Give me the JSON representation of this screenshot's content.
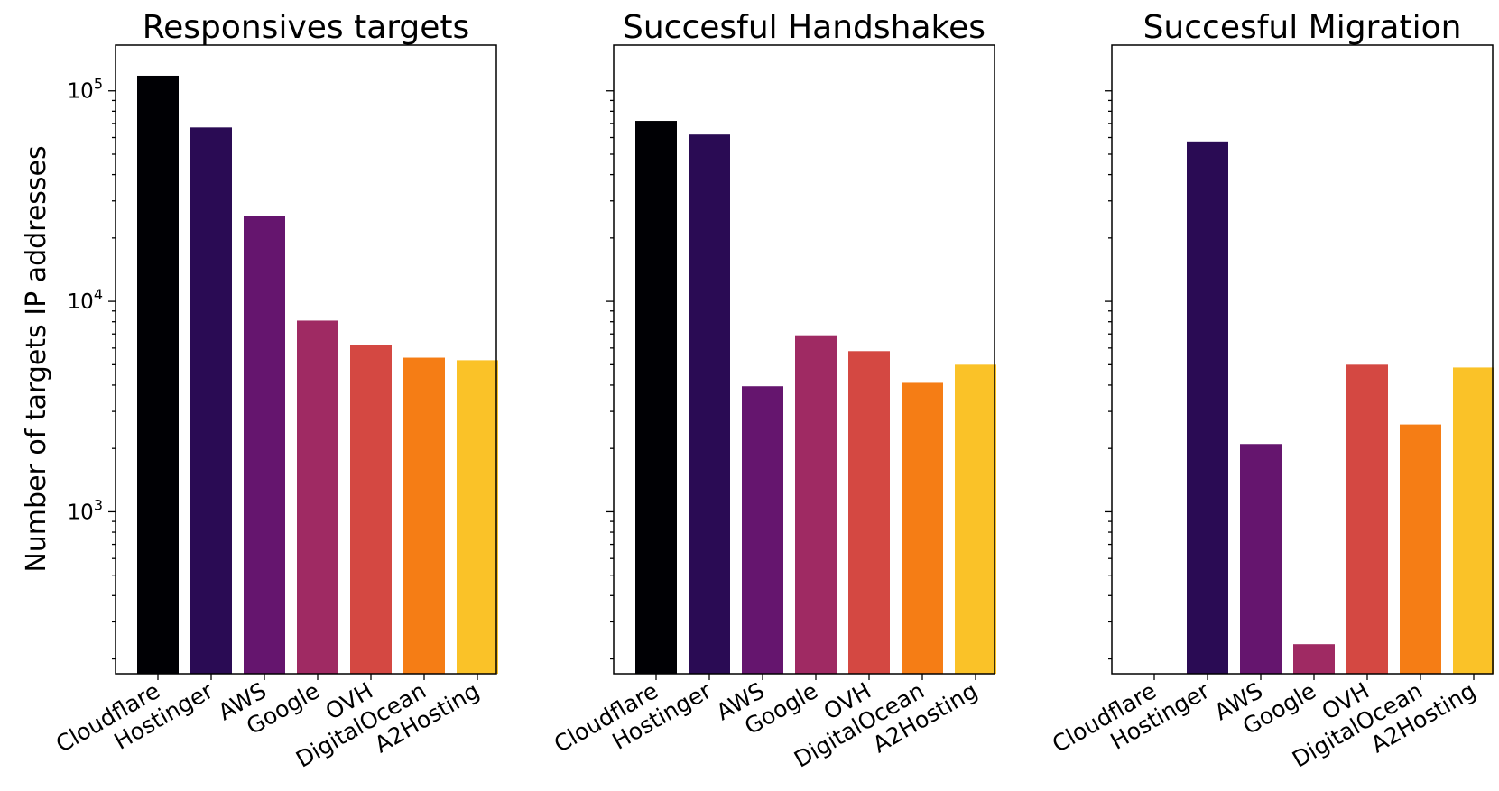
{
  "chart_data": {
    "type": "bar",
    "yscale": "log",
    "ylim": [
      170,
      165000
    ],
    "ylabel": "Number of targets IP addresses",
    "y_ticks": [
      {
        "value": 1000,
        "label": "10",
        "exp": "3"
      },
      {
        "value": 10000,
        "label": "10",
        "exp": "4"
      },
      {
        "value": 100000,
        "label": "10",
        "exp": "5"
      }
    ],
    "categories": [
      "Cloudflare",
      "Hostinger",
      "AWS",
      "Google",
      "OVH",
      "DigitalOcean",
      "A2Hosting"
    ],
    "colors": [
      "#000004",
      "#2a0b54",
      "#65156e",
      "#9f2a63",
      "#d44842",
      "#f57d15",
      "#fac228"
    ],
    "panels": [
      {
        "title": "Responsives targets",
        "values": [
          118000,
          67000,
          25500,
          8100,
          6200,
          5400,
          5250
        ]
      },
      {
        "title": "Succesful Handshakes",
        "values": [
          72000,
          62000,
          3950,
          6900,
          5800,
          4100,
          5000
        ]
      },
      {
        "title": "Succesful Migration",
        "values": [
          0,
          57500,
          2100,
          235,
          5000,
          2600,
          4850
        ]
      }
    ]
  }
}
